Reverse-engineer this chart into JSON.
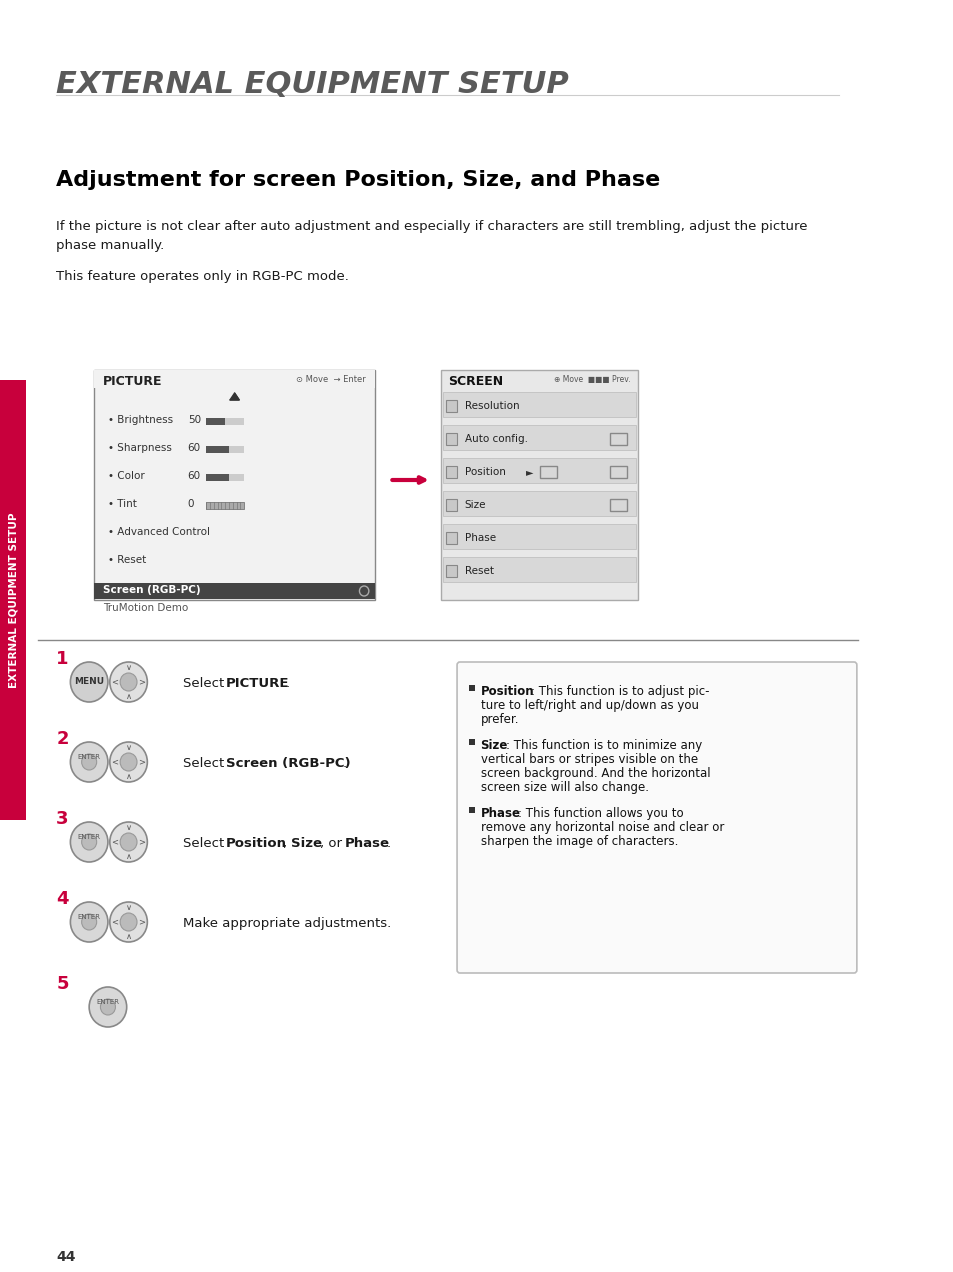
{
  "page_title": "EXTERNAL EQUIPMENT SETUP",
  "section_title": "Adjustment for screen Position, Size, and Phase",
  "body_text_1": "If the picture is not clear after auto adjustment and especially if characters are still trembling, adjust the picture\nphase manually.",
  "body_text_2": "This feature operates only in RGB-PC mode.",
  "sidebar_text": "EXTERNAL EQUIPMENT SETUP",
  "page_number": "44",
  "steps": [
    {
      "num": "1",
      "icon_type": "menu_enter",
      "text_plain": "Select ",
      "text_bold": "PICTURE",
      "text_after": "."
    },
    {
      "num": "2",
      "icon_type": "enter_nav",
      "text_plain": "Select ",
      "text_bold": "Screen (RGB-PC)",
      "text_after": "."
    },
    {
      "num": "3",
      "icon_type": "enter_nav",
      "text_plain": "Select ",
      "text_bold": "Position",
      "text_after": ", ",
      "text_bold2": "Size",
      "text_after2": ", or ",
      "text_bold3": "Phase",
      "text_after3": "."
    },
    {
      "num": "4",
      "icon_type": "enter_nav",
      "text_plain": "Make appropriate adjustments.",
      "text_bold": "",
      "text_after": ""
    },
    {
      "num": "5",
      "icon_type": "enter_only",
      "text_plain": "",
      "text_bold": "",
      "text_after": ""
    }
  ],
  "info_box": {
    "items": [
      {
        "bold_start": "Position",
        "text": ": This function is to adjust pic-\nture to left/right and up/down as you\nprefer."
      },
      {
        "bold_start": "Size",
        "text": ": This function is to minimize any\nvertical bars or stripes visible on the\nscreen background. And the horizontal\nscreen size will also change."
      },
      {
        "bold_start": "Phase",
        "text": ": This function allows you to\nremove any horizontal noise and clear or\nsharpen the image of characters."
      }
    ]
  },
  "picture_menu": {
    "title": "PICTURE",
    "items": [
      {
        "label": "Brightness",
        "value": "50"
      },
      {
        "label": "Sharpness",
        "value": "60"
      },
      {
        "label": "Color",
        "value": "60"
      },
      {
        "label": "Tint",
        "value": "0"
      },
      {
        "label": "Advanced Control",
        "value": ""
      },
      {
        "label": "Reset",
        "value": ""
      }
    ],
    "selected": "Screen (RGB-PC)",
    "bottom": "TruMotion Demo"
  },
  "screen_menu": {
    "title": "SCREEN",
    "items": [
      "Resolution",
      "Auto config.",
      "Position",
      "Size",
      "Phase",
      "Reset"
    ]
  },
  "colors": {
    "background": "#ffffff",
    "title_color": "#5a5a5a",
    "section_title_color": "#000000",
    "body_text_color": "#1a1a1a",
    "sidebar_bg": "#c8003c",
    "sidebar_text_color": "#ffffff",
    "step_num_color": "#c8003c",
    "menu_bg": "#f0f0f0",
    "menu_selected_bg": "#555555",
    "menu_selected_text": "#ffffff",
    "screen_menu_bg": "#e8e8e8",
    "arrow_color": "#c8003c",
    "info_box_border": "#cccccc",
    "line_color": "#888888"
  }
}
